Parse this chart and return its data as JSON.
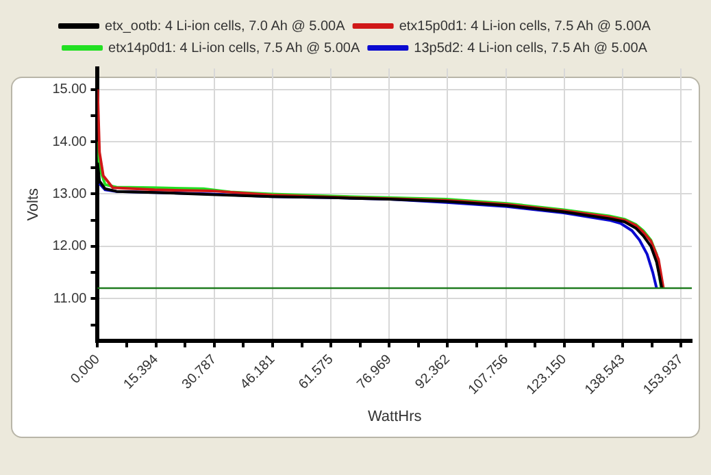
{
  "chart_data": {
    "type": "line",
    "xlabel": "WattHrs",
    "ylabel": "Volts",
    "xlim": [
      0,
      156.8
    ],
    "ylim": [
      10.2,
      15.4
    ],
    "xticks": [
      {
        "value": 0,
        "label": "0.000"
      },
      {
        "value": 7.697,
        "label": null
      },
      {
        "value": 15.394,
        "label": "15.394"
      },
      {
        "value": 23.091,
        "label": null
      },
      {
        "value": 30.787,
        "label": "30.787"
      },
      {
        "value": 38.484,
        "label": null
      },
      {
        "value": 46.181,
        "label": "46.181"
      },
      {
        "value": 53.878,
        "label": null
      },
      {
        "value": 61.575,
        "label": "61.575"
      },
      {
        "value": 69.272,
        "label": null
      },
      {
        "value": 76.969,
        "label": "76.969"
      },
      {
        "value": 84.666,
        "label": null
      },
      {
        "value": 92.362,
        "label": "92.362"
      },
      {
        "value": 100.059,
        "label": null
      },
      {
        "value": 107.756,
        "label": "107.756"
      },
      {
        "value": 115.453,
        "label": null
      },
      {
        "value": 123.15,
        "label": "123.150"
      },
      {
        "value": 130.847,
        "label": null
      },
      {
        "value": 138.543,
        "label": "138.543"
      },
      {
        "value": 146.24,
        "label": null
      },
      {
        "value": 153.937,
        "label": "153.937"
      }
    ],
    "yticks": [
      {
        "value": 10.5,
        "label": null
      },
      {
        "value": 11,
        "label": "11.00"
      },
      {
        "value": 11.5,
        "label": null
      },
      {
        "value": 12,
        "label": "12.00"
      },
      {
        "value": 12.5,
        "label": null
      },
      {
        "value": 13,
        "label": "13.00"
      },
      {
        "value": 13.5,
        "label": null
      },
      {
        "value": 14,
        "label": "14.00"
      },
      {
        "value": 14.5,
        "label": null
      },
      {
        "value": 15,
        "label": "15.00"
      }
    ],
    "grid": true,
    "legend": "top",
    "marker": "none",
    "line_style": "solid",
    "ref_lines": [
      {
        "axis": "y",
        "value": 11.2,
        "color": "#1e7b1e"
      }
    ],
    "series": [
      {
        "name": "etx_ootb: 4 Li-ion cells, 7.0 Ah @ 5.00A",
        "color": "#000000",
        "x": [
          0,
          0.5,
          2,
          5,
          15,
          30,
          46,
          62,
          77,
          92,
          108,
          123,
          135,
          139,
          142,
          144,
          146,
          147.5,
          148.9
        ],
        "values": [
          13.6,
          13.25,
          13.1,
          13.05,
          13.03,
          12.99,
          12.95,
          12.93,
          12.9,
          12.86,
          12.78,
          12.66,
          12.53,
          12.47,
          12.35,
          12.2,
          12.0,
          11.7,
          11.2
        ]
      },
      {
        "name": "etx15p0d1: 4 Li-ion cells, 7.5 Ah @ 5.00A",
        "color": "#d01818",
        "x": [
          0,
          0.5,
          1.5,
          4,
          15,
          30,
          46,
          62,
          77,
          92,
          108,
          123,
          135,
          139,
          142,
          144,
          146,
          148,
          149.3
        ],
        "values": [
          15.0,
          13.8,
          13.35,
          13.12,
          13.08,
          13.06,
          12.98,
          12.94,
          12.91,
          12.88,
          12.8,
          12.68,
          12.56,
          12.5,
          12.4,
          12.27,
          12.1,
          11.75,
          11.2
        ]
      },
      {
        "name": "etx14p0d1: 4 Li-ion cells, 7.5 Ah @ 5.00A",
        "color": "#22e022",
        "x": [
          0,
          0.5,
          2,
          5,
          15,
          28,
          35,
          46,
          62,
          77,
          92,
          108,
          123,
          135,
          139,
          142,
          144,
          146,
          147.5,
          148.7
        ],
        "values": [
          14.0,
          13.5,
          13.18,
          13.13,
          13.12,
          13.1,
          13.04,
          13.0,
          12.96,
          12.93,
          12.9,
          12.82,
          12.7,
          12.58,
          12.52,
          12.42,
          12.3,
          12.12,
          11.85,
          11.2
        ]
      },
      {
        "name": "13p5d2: 4 Li-ion cells, 7.5 Ah @ 5.00A",
        "color": "#0a0ad0",
        "x": [
          0.5,
          2,
          5,
          15,
          30,
          46,
          62,
          77,
          92,
          108,
          123,
          135,
          138,
          141,
          143,
          145,
          146.5,
          147.5
        ],
        "values": [
          13.2,
          13.08,
          13.05,
          13.03,
          13.0,
          12.95,
          12.93,
          12.9,
          12.84,
          12.76,
          12.64,
          12.5,
          12.44,
          12.3,
          12.12,
          11.85,
          11.5,
          11.2
        ]
      }
    ]
  }
}
